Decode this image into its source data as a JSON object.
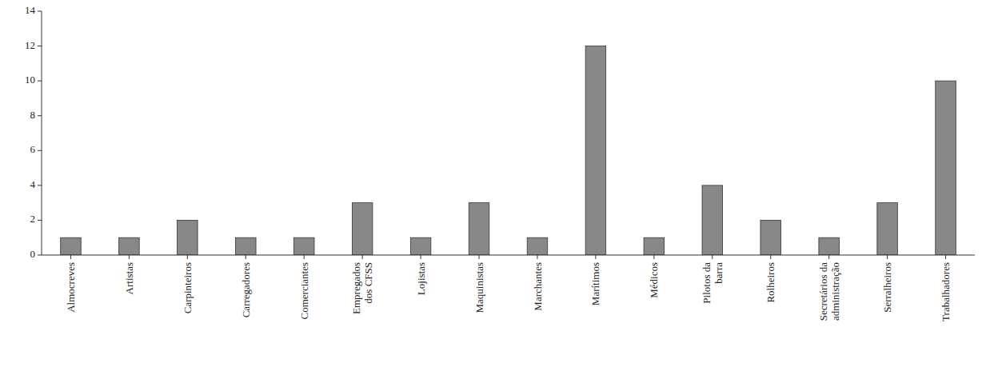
{
  "chart_data": {
    "type": "bar",
    "categories": [
      "Almocreves",
      "Artistas",
      "Carpinteiros",
      "Carregadores",
      "Comerciantes",
      "Empregados\ndos CFSS",
      "Lojistas",
      "Maquinistas",
      "Marchantes",
      "Marítimos",
      "Médicos",
      "Pilotos da\nbarra",
      "Rolheiros",
      "Secretários da\nadministração",
      "Serralheiros",
      "Trabalhadores"
    ],
    "values": [
      1,
      1,
      2,
      1,
      1,
      3,
      1,
      3,
      1,
      12,
      1,
      4,
      2,
      1,
      3,
      10
    ],
    "color": "#888888",
    "ylim": [
      0,
      14
    ],
    "yticks": [
      0,
      2,
      4,
      6,
      8,
      10,
      12,
      14
    ],
    "grid": false
  }
}
